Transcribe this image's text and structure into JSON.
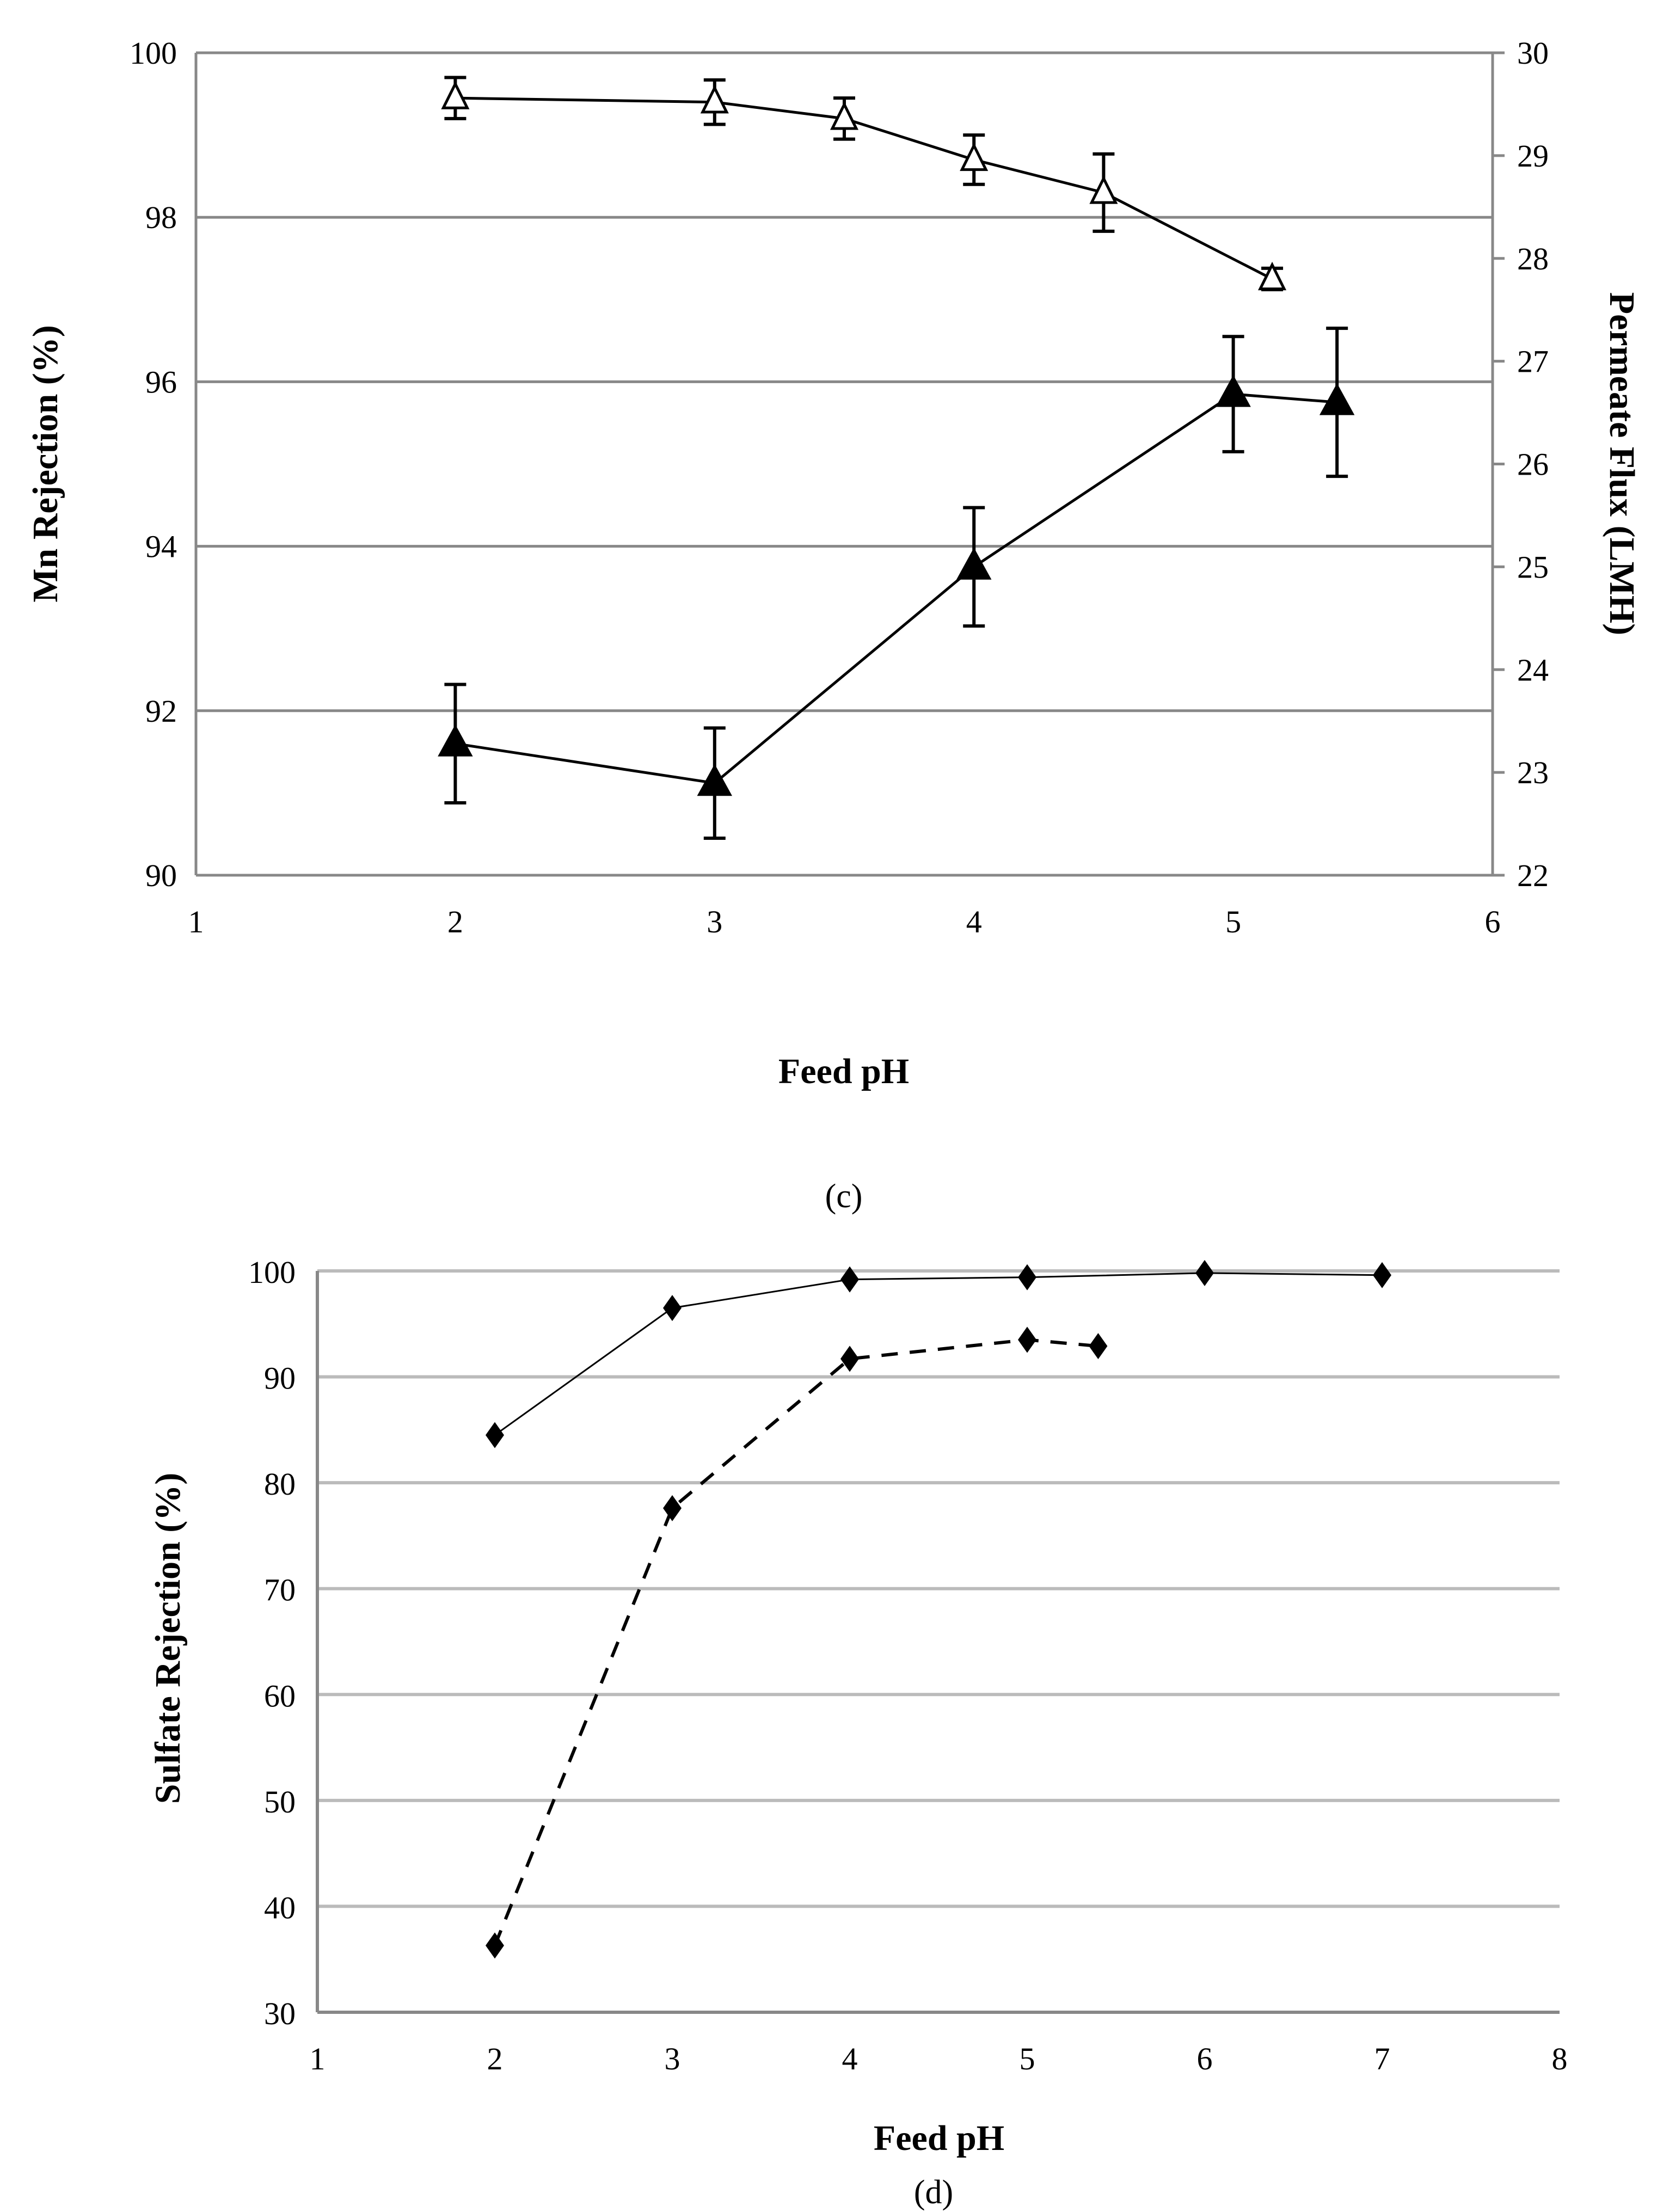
{
  "chart_data": [
    {
      "type": "line",
      "panel_label": "(c)",
      "xlabel": "Feed pH",
      "ylabel": "Mn Rejection (%)",
      "y2label": "Permeate Flux (LMH)",
      "xlim": [
        1,
        6
      ],
      "ylim": [
        90,
        100
      ],
      "y2lim": [
        22,
        30
      ],
      "xticks": [
        "1",
        "2",
        "3",
        "4",
        "5",
        "6"
      ],
      "yticks": [
        "90",
        "92",
        "94",
        "96",
        "98",
        "100"
      ],
      "y2ticks": [
        "22",
        "23",
        "24",
        "25",
        "26",
        "27",
        "28",
        "29",
        "30"
      ],
      "grid": "horizontal",
      "series": [
        {
          "name": "open-triangle series",
          "marker": "open-triangle",
          "x": [
            2,
            3,
            3.5,
            4,
            4.5,
            5.15
          ],
          "y": [
            99.45,
            99.4,
            99.2,
            98.7,
            98.3,
            97.25
          ],
          "err": [
            0.25,
            0.27,
            0.25,
            0.3,
            0.47,
            0.13
          ]
        },
        {
          "name": "filled-triangle series",
          "marker": "filled-triangle",
          "x": [
            2,
            3,
            4,
            5,
            5.4
          ],
          "y": [
            91.6,
            91.12,
            93.75,
            95.85,
            95.75
          ],
          "err": [
            0.72,
            0.67,
            0.72,
            0.7,
            0.9
          ]
        }
      ]
    },
    {
      "type": "line",
      "panel_label": "(d)",
      "xlabel": "Feed pH",
      "ylabel": "Sulfate Rejection (%)",
      "xlim": [
        1,
        8
      ],
      "ylim": [
        30,
        100
      ],
      "xticks": [
        "1",
        "2",
        "3",
        "4",
        "5",
        "6",
        "7",
        "8"
      ],
      "yticks": [
        "30",
        "40",
        "50",
        "60",
        "70",
        "80",
        "90",
        "100"
      ],
      "grid": "horizontal",
      "series": [
        {
          "name": "solid series",
          "style": "solid",
          "marker": "diamond",
          "x": [
            2,
            3,
            4,
            5,
            6,
            7
          ],
          "y": [
            84.5,
            96.5,
            99.2,
            99.4,
            99.8,
            99.6
          ]
        },
        {
          "name": "dashed series",
          "style": "dashed",
          "marker": "diamond",
          "x": [
            2,
            3,
            4,
            5,
            5.4
          ],
          "y": [
            36.3,
            77.6,
            91.7,
            93.5,
            92.9
          ]
        }
      ]
    }
  ]
}
